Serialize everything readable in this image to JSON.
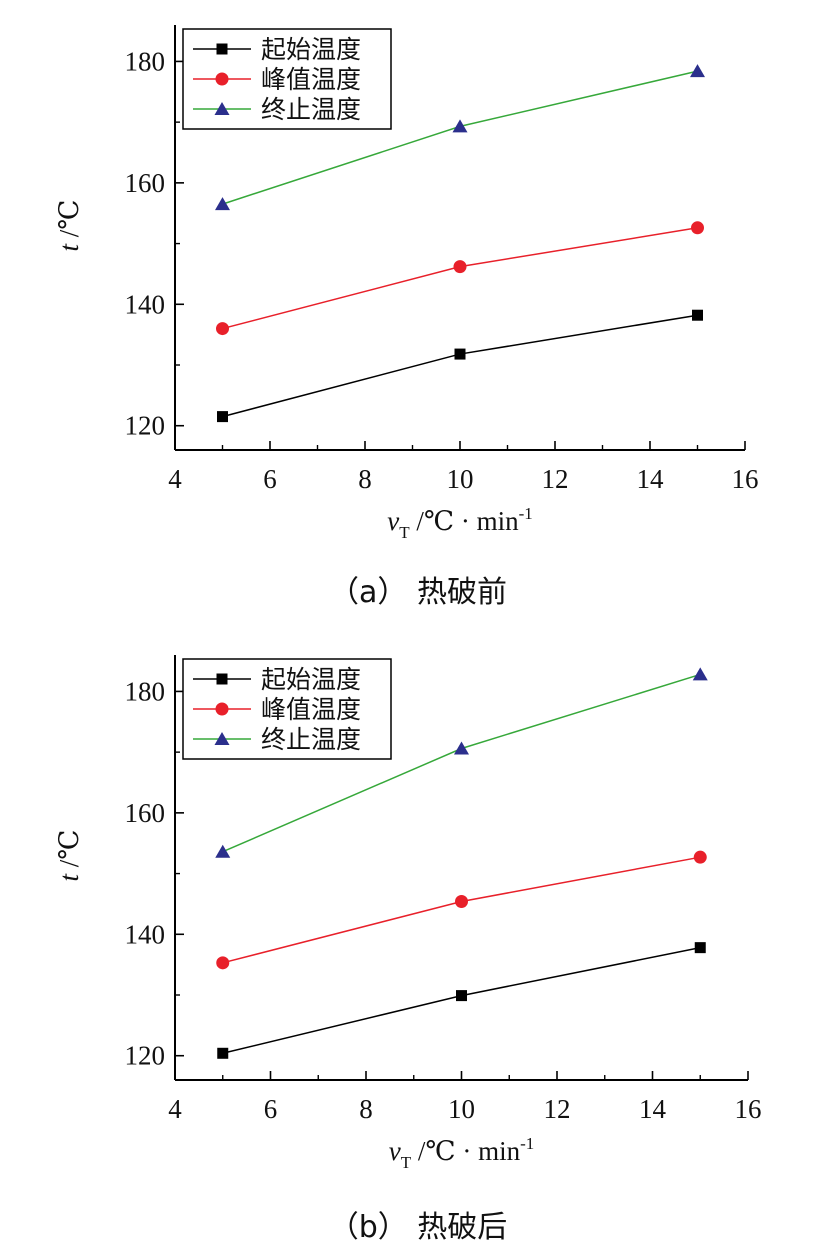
{
  "chart_data": [
    {
      "type": "line",
      "caption": "（a） 热破前",
      "xlabel": {
        "var": "v",
        "sub": "T",
        "unit": " /℃ · min",
        "sup": "-1"
      },
      "ylabel": {
        "var": "t",
        "unit": " /℃"
      },
      "xlim": [
        4,
        16
      ],
      "ylim": [
        116,
        186
      ],
      "xticks": [
        4,
        6,
        8,
        10,
        12,
        14,
        16
      ],
      "yticks": [
        120,
        140,
        160,
        180
      ],
      "x": [
        5,
        10,
        15
      ],
      "legend_position": "top-left",
      "series": [
        {
          "name": "起始温度",
          "marker": "square",
          "color": "#000000",
          "values": [
            121.5,
            131.8,
            138.2
          ]
        },
        {
          "name": "峰值温度",
          "marker": "circle",
          "color": "#e8202a",
          "values": [
            136.0,
            146.2,
            152.6
          ]
        },
        {
          "name": "终止温度",
          "marker": "triangle",
          "color": "#36a83a",
          "marker_color": "#2b2f8c",
          "values": [
            156.5,
            169.3,
            178.4
          ]
        }
      ]
    },
    {
      "type": "line",
      "caption": "（b） 热破后",
      "xlabel": {
        "var": "v",
        "sub": "T",
        "unit": " /℃ · min",
        "sup": "-1"
      },
      "ylabel": {
        "var": "t",
        "unit": " /℃"
      },
      "xlim": [
        4,
        16
      ],
      "ylim": [
        116,
        186
      ],
      "xticks": [
        4,
        6,
        8,
        10,
        12,
        14,
        16
      ],
      "yticks": [
        120,
        140,
        160,
        180
      ],
      "x": [
        5,
        10,
        15
      ],
      "legend_position": "top-left",
      "series": [
        {
          "name": "起始温度",
          "marker": "square",
          "color": "#000000",
          "values": [
            120.4,
            129.9,
            137.8
          ]
        },
        {
          "name": "峰值温度",
          "marker": "circle",
          "color": "#e8202a",
          "values": [
            135.3,
            145.4,
            152.7
          ]
        },
        {
          "name": "终止温度",
          "marker": "triangle",
          "color": "#36a83a",
          "marker_color": "#2b2f8c",
          "values": [
            153.6,
            170.6,
            182.8
          ]
        }
      ]
    }
  ]
}
